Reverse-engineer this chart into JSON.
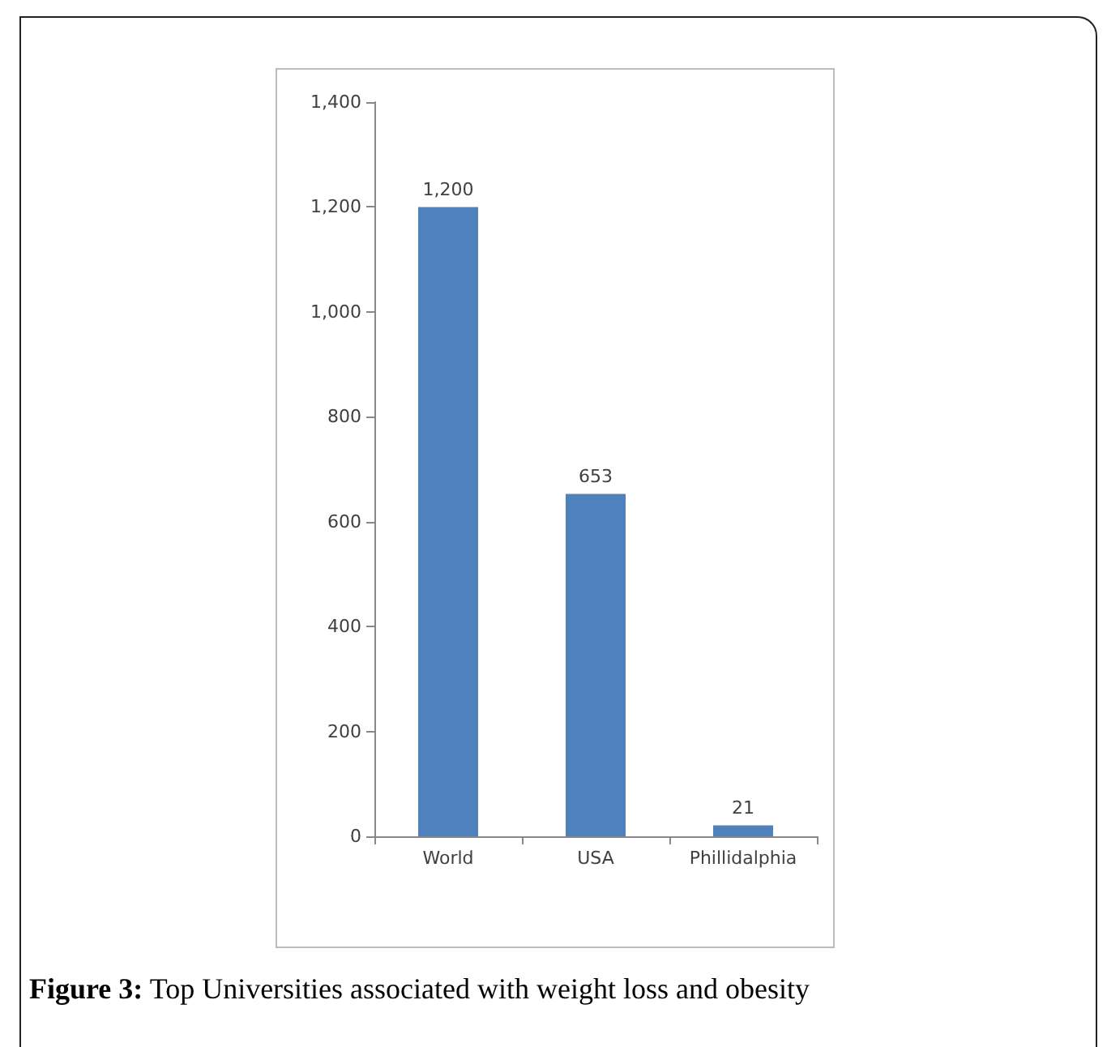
{
  "chart_data": {
    "type": "bar",
    "categories": [
      "World",
      "USA",
      "Phillidalphia"
    ],
    "values": [
      1200,
      653,
      21
    ],
    "color": "#4f81bd",
    "ylim": [
      0,
      1400
    ],
    "yticks": [
      0,
      200,
      400,
      600,
      800,
      {
        "value": 1000,
        "label": "1,000"
      },
      {
        "value": 1200,
        "label": "1,200"
      },
      {
        "value": 1400,
        "label": "1,400"
      }
    ],
    "value_labels": [
      "1,200",
      "653",
      "21"
    ],
    "grid": false,
    "annotations": [
      "Figure 3: Top Universities associated with weight loss and obesity"
    ]
  }
}
